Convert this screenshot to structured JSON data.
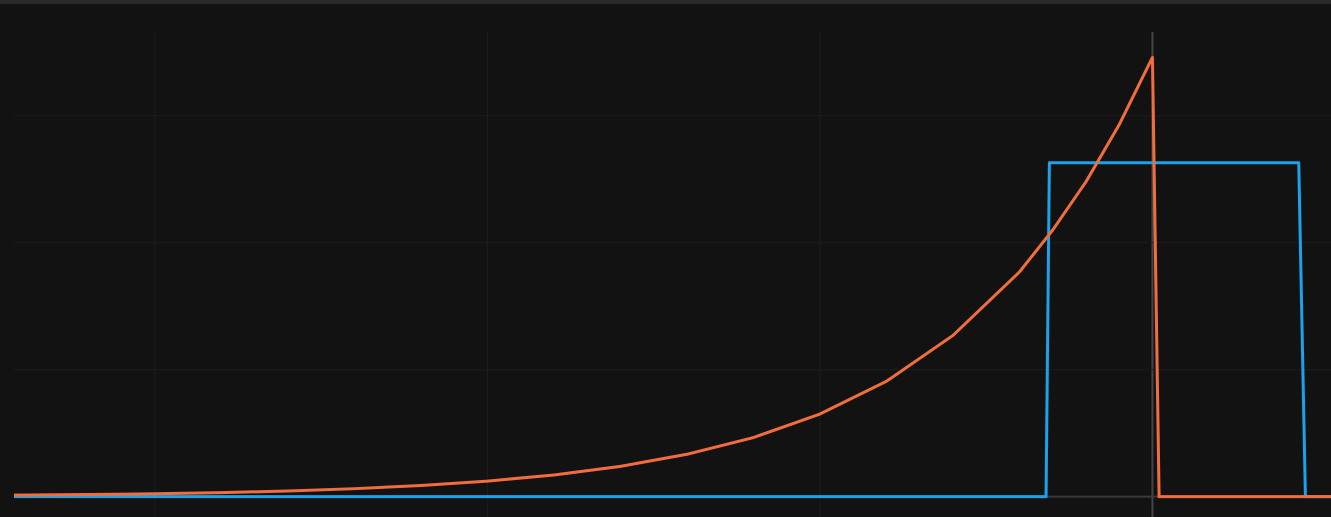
{
  "chart_data": {
    "type": "line",
    "xlim": [
      0.534,
      4.537
    ],
    "ylim": [
      -0.16,
      3.66
    ],
    "xticks": [
      1,
      2,
      3,
      4
    ],
    "yticks": [
      0,
      1,
      2,
      3
    ],
    "grid": true,
    "series": [
      {
        "color": "#1aa3ec",
        "x": [
          0.576,
          3.68,
          3.69,
          4.44,
          4.46,
          4.537
        ],
        "values": [
          0,
          0,
          2.63,
          2.63,
          0,
          0
        ]
      },
      {
        "color": "#f26d3d",
        "x": [
          0.576,
          0.8,
          1.0,
          1.2,
          1.4,
          1.6,
          1.8,
          2.0,
          2.2,
          2.4,
          2.6,
          2.8,
          3.0,
          3.2,
          3.4,
          3.6,
          3.7,
          3.8,
          3.9,
          4.0,
          4.02,
          4.537
        ],
        "values": [
          0.012,
          0.017,
          0.023,
          0.032,
          0.045,
          0.063,
          0.088,
          0.123,
          0.171,
          0.239,
          0.334,
          0.466,
          0.651,
          0.909,
          1.27,
          1.77,
          2.1,
          2.48,
          2.93,
          3.46,
          0,
          0
        ]
      }
    ]
  }
}
